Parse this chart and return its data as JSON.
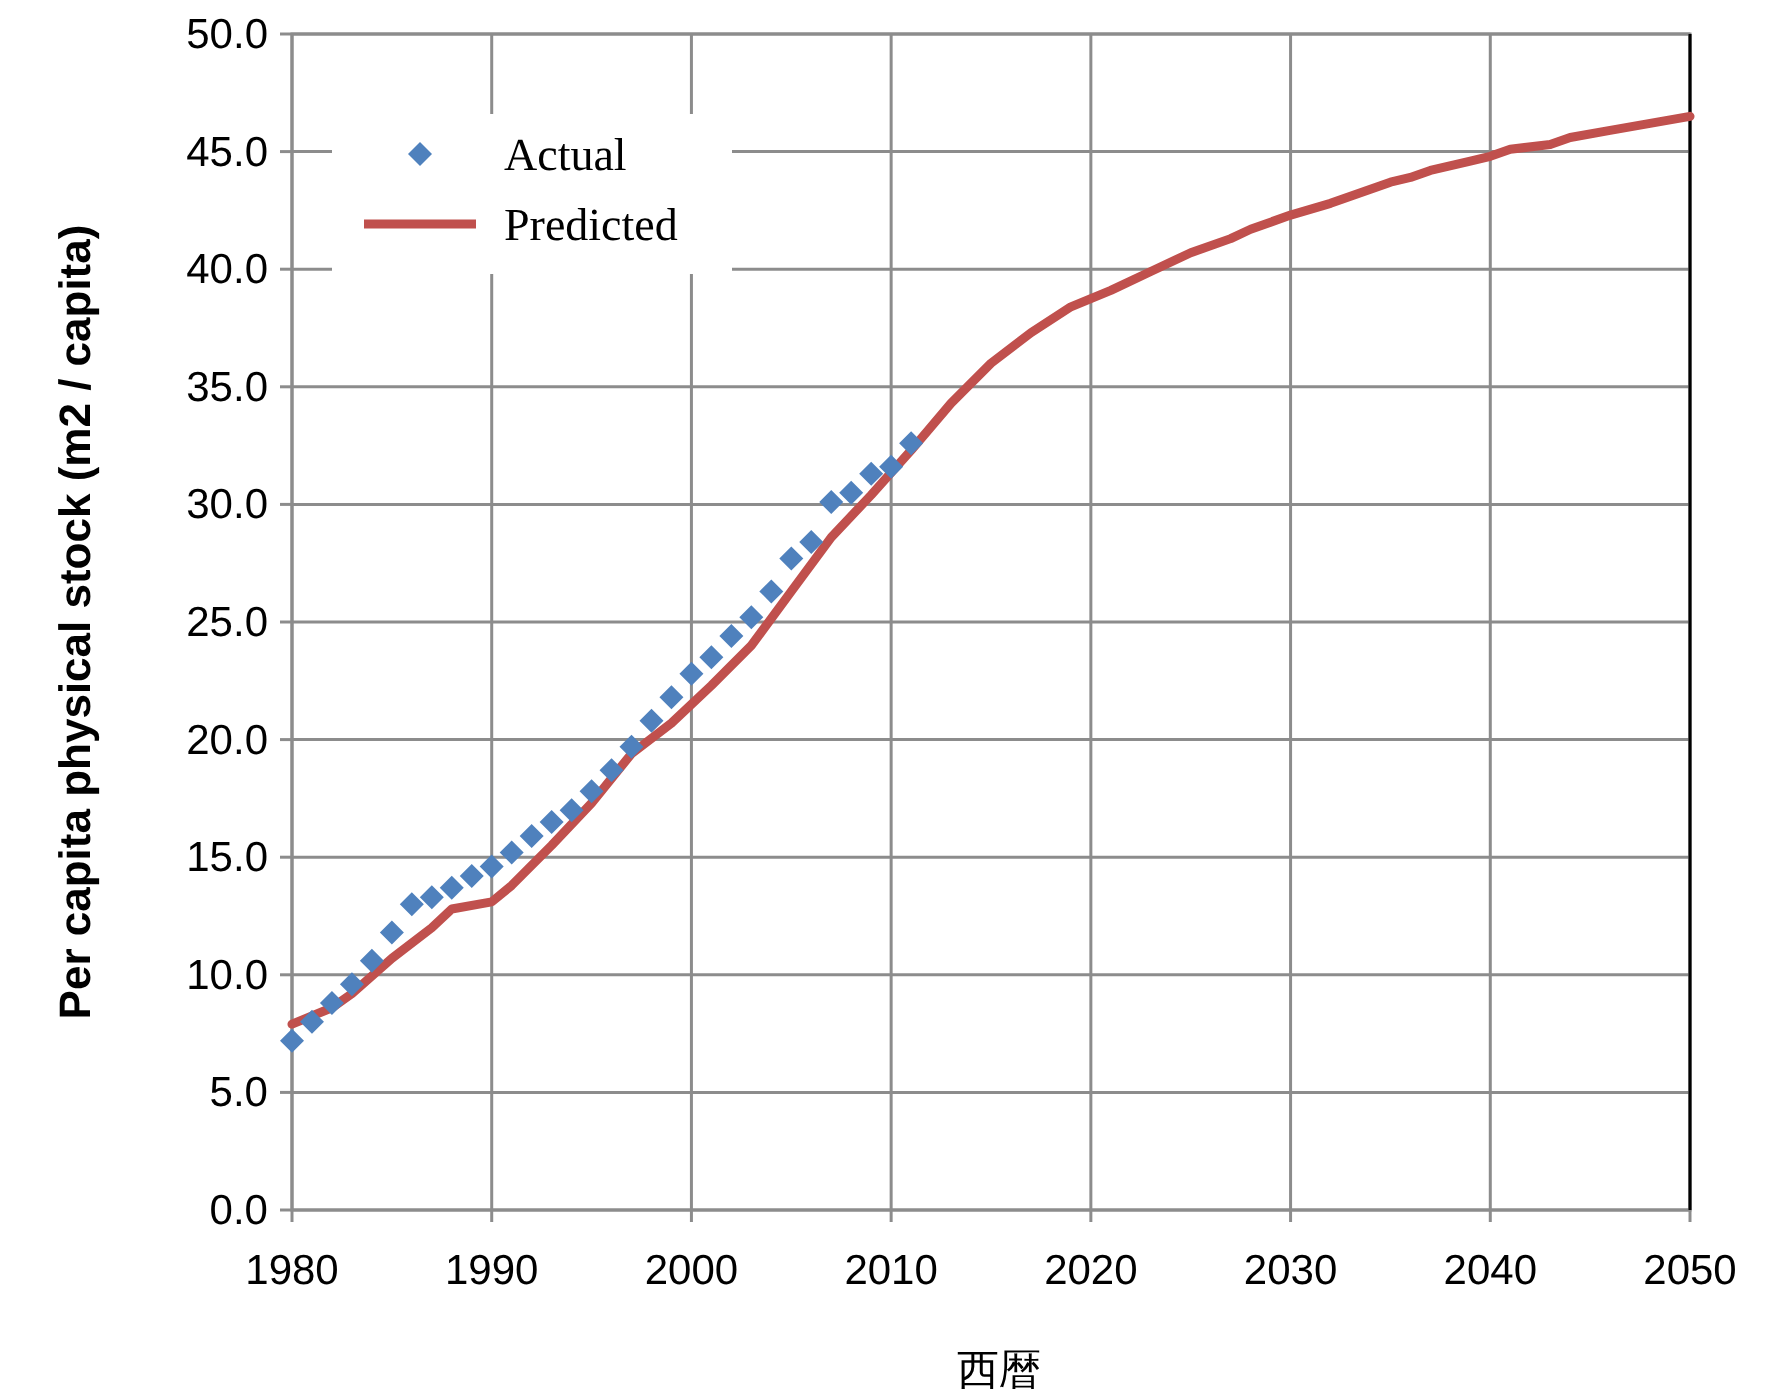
{
  "chart_data": {
    "type": "line",
    "xlabel": "西暦",
    "ylabel": "Per capita physical stock (m2 / capita)",
    "xlim": [
      1980,
      2050
    ],
    "xticks": [
      1980,
      1990,
      2000,
      2010,
      2020,
      2030,
      2040,
      2050
    ],
    "ylim": [
      0,
      50
    ],
    "yticks": [
      {
        "value": 0,
        "label": "0.0"
      },
      {
        "value": 5,
        "label": "5.0"
      },
      {
        "value": 10,
        "label": "10.0"
      },
      {
        "value": 15,
        "label": "15.0"
      },
      {
        "value": 20,
        "label": "20.0"
      },
      {
        "value": 25,
        "label": "25.0"
      },
      {
        "value": 30,
        "label": "30.0"
      },
      {
        "value": 35,
        "label": "35.0"
      },
      {
        "value": 40,
        "label": "40.0"
      },
      {
        "value": 45,
        "label": "45.0"
      },
      {
        "value": 50,
        "label": "50.0"
      }
    ],
    "grid": true,
    "legend": "top left",
    "series": [
      {
        "name": "Actual",
        "type": "scatter",
        "marker": "diamond",
        "color": "#4f81bd",
        "x": [
          1980,
          1981,
          1982,
          1983,
          1984,
          1985,
          1986,
          1987,
          1988,
          1989,
          1990,
          1991,
          1992,
          1993,
          1994,
          1995,
          1996,
          1997,
          1998,
          1999,
          2000,
          2001,
          2002,
          2003,
          2004,
          2005,
          2006,
          2007,
          2008,
          2009,
          2010,
          2011
        ],
        "values": [
          7.2,
          8.0,
          8.8,
          9.6,
          10.6,
          11.8,
          13.0,
          13.3,
          13.7,
          14.2,
          14.6,
          15.2,
          15.9,
          16.5,
          17.0,
          17.8,
          18.7,
          19.7,
          20.8,
          21.8,
          22.8,
          23.5,
          24.4,
          25.2,
          26.3,
          27.7,
          28.4,
          30.1,
          30.5,
          31.3,
          31.6,
          32.6
        ]
      },
      {
        "name": "Predicted",
        "type": "line",
        "marker": "none",
        "line_style": "solid",
        "color": "#c0504d",
        "x": [
          1980,
          1982,
          1983,
          1985,
          1987,
          1988,
          1990,
          1991,
          1993,
          1995,
          1997,
          1999,
          2001,
          2003,
          2005,
          2007,
          2009,
          2011,
          2013,
          2015,
          2017,
          2019,
          2021,
          2023,
          2025,
          2027,
          2028,
          2030,
          2032,
          2034,
          2035,
          2036,
          2037,
          2039,
          2040,
          2041,
          2043,
          2044,
          2046,
          2048,
          2050
        ],
        "values": [
          7.9,
          8.6,
          9.2,
          10.7,
          12.0,
          12.8,
          13.1,
          13.8,
          15.5,
          17.3,
          19.4,
          20.7,
          22.3,
          24.0,
          26.3,
          28.6,
          30.4,
          32.3,
          34.3,
          36.0,
          37.3,
          38.4,
          39.1,
          39.9,
          40.7,
          41.3,
          41.7,
          42.3,
          42.8,
          43.4,
          43.7,
          43.9,
          44.2,
          44.6,
          44.8,
          45.1,
          45.3,
          45.6,
          45.9,
          46.2,
          46.5
        ]
      }
    ]
  }
}
